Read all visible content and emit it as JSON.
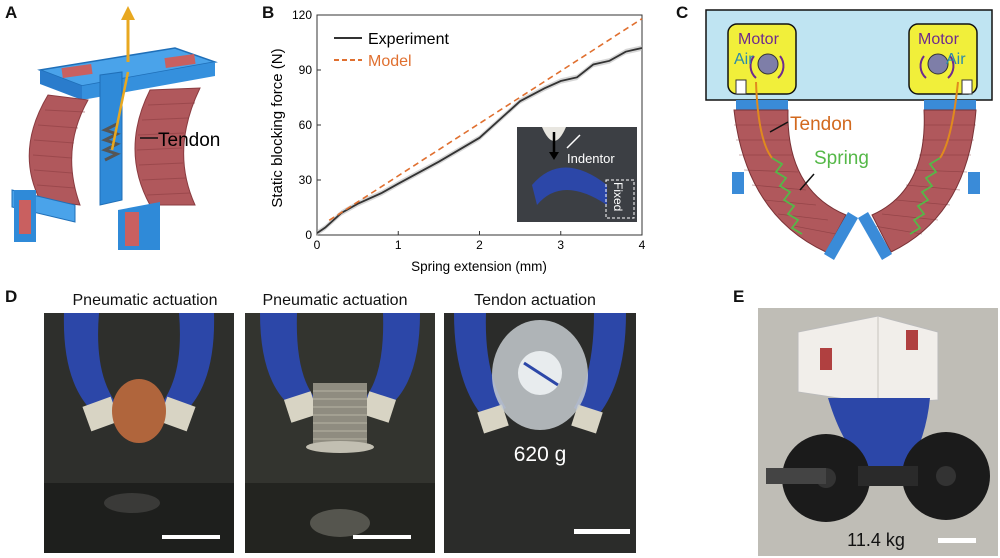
{
  "panels": {
    "a": {
      "letter": "A",
      "tendon_label": "Tendon"
    },
    "b": {
      "letter": "B",
      "indentor_label": "Indentor",
      "fixed_label": "Fixed"
    },
    "c": {
      "letter": "C",
      "motor_label": "Motor",
      "air_label": "Air",
      "tendon_label": "Tendon",
      "spring_label": "Spring"
    },
    "d": {
      "letter": "D",
      "captions": [
        "Pneumatic actuation",
        "Pneumatic actuation",
        "Tendon actuation"
      ],
      "mass_label": "620 g"
    },
    "e": {
      "letter": "E",
      "mass_label": "11.4 kg"
    }
  },
  "colors": {
    "actuator_red": "#b0585c",
    "frame_blue": "#2f8ad8",
    "tendon_orange": "#e08a1e",
    "spring_green": "#55b848",
    "model_orange": "#e07030",
    "gripper_blue": "#2c47a8"
  },
  "chart_data": {
    "type": "line",
    "title": "",
    "xlabel": "Spring extension (mm)",
    "ylabel": "Static blocking force (N)",
    "xlim": [
      0,
      4
    ],
    "ylim": [
      0,
      120
    ],
    "xticks": [
      "0",
      "1",
      "2",
      "3",
      "4"
    ],
    "yticks": [
      "0",
      "30",
      "60",
      "90",
      "120"
    ],
    "legend_position": "top-left",
    "series": [
      {
        "name": "Experiment",
        "style": "solid",
        "color": "#333333",
        "x": [
          0,
          0.1,
          0.3,
          0.5,
          0.8,
          1.0,
          1.5,
          2.0,
          2.5,
          2.8,
          3.0,
          3.2,
          3.4,
          3.6,
          3.8,
          4.0
        ],
        "y": [
          1,
          4,
          12,
          17,
          23,
          28,
          40,
          53,
          73,
          80,
          84,
          86,
          93,
          95,
          100,
          102
        ]
      },
      {
        "name": "Model",
        "style": "dashed",
        "color": "#e07030",
        "x": [
          0.15,
          4.0
        ],
        "y": [
          8,
          118
        ]
      }
    ]
  }
}
